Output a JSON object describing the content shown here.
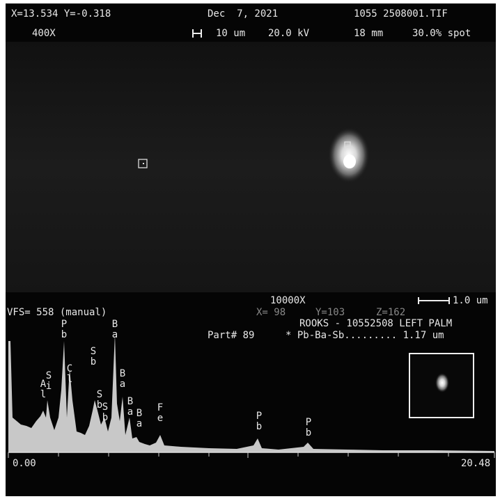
{
  "header": {
    "coords": "X=13.534 Y=-0.318",
    "date": "Dec  7, 2021",
    "file": "1055 2508001.TIF",
    "magnification": "400X",
    "scale": "10 um",
    "voltage": "20.0 kV",
    "distance": "18 mm",
    "spot": "30.0% spot"
  },
  "overlay": {
    "magnification": "10000X",
    "scale": "1.0 um",
    "vfs": "VFS= 558 (manual)",
    "x": "X= 98",
    "y": "Y=103",
    "z": "Z=162",
    "sample": "ROOKS - 10552508 LEFT PALM",
    "part": "Part# 89",
    "result": "* Pb-Ba-Sb......... 1.17 um"
  },
  "spectrum": {
    "peaks": [
      "Al",
      "Si",
      "Pb",
      "Cl",
      "Sb",
      "Sb",
      "Sb",
      "Ba",
      "Ba",
      "Ba",
      "Ba",
      "Fe",
      "Pb",
      "Pb"
    ],
    "axis_start": "0.00",
    "axis_end": "20.48"
  }
}
